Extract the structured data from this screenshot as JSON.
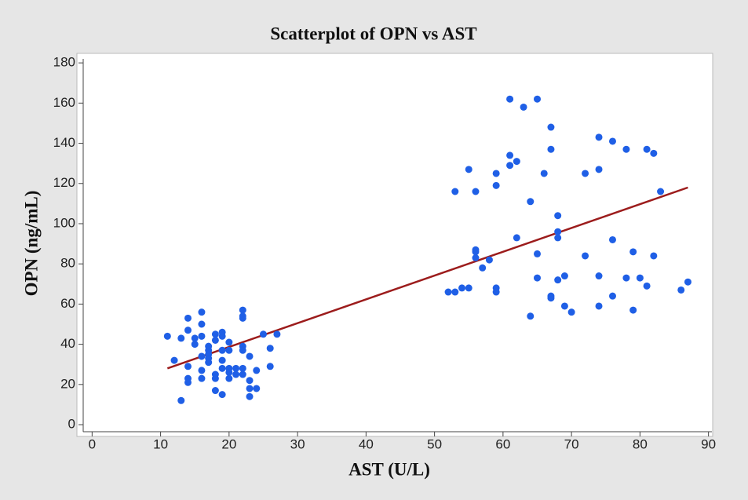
{
  "chart_data": {
    "type": "scatter",
    "title": "Scatterplot of OPN vs AST",
    "x_label": "AST (U/L)",
    "y_label": "OPN (ng/mL)",
    "x": [
      11,
      12,
      13,
      13,
      14,
      14,
      14,
      14,
      14,
      15,
      15,
      16,
      16,
      16,
      16,
      16,
      16,
      17,
      17,
      17,
      17,
      17,
      18,
      18,
      18,
      18,
      18,
      19,
      19,
      19,
      19,
      19,
      19,
      20,
      20,
      20,
      20,
      20,
      21,
      21,
      22,
      22,
      22,
      22,
      22,
      22,
      22,
      23,
      23,
      23,
      23,
      24,
      24,
      25,
      26,
      26,
      27,
      52,
      53,
      53,
      54,
      55,
      55,
      56,
      56,
      56,
      56,
      57,
      58,
      59,
      59,
      59,
      59,
      61,
      61,
      61,
      62,
      62,
      63,
      64,
      64,
      65,
      65,
      65,
      66,
      67,
      67,
      67,
      67,
      68,
      68,
      68,
      68,
      69,
      69,
      70,
      72,
      72,
      74,
      74,
      74,
      74,
      76,
      76,
      76,
      78,
      78,
      79,
      79,
      80,
      81,
      81,
      82,
      82,
      83,
      86,
      87
    ],
    "values": [
      44,
      32,
      12,
      43,
      53,
      47,
      29,
      23,
      21,
      43,
      40,
      56,
      50,
      44,
      34,
      27,
      23,
      39,
      37,
      35,
      33,
      31,
      45,
      42,
      25,
      23,
      17,
      46,
      44,
      37,
      32,
      28,
      15,
      41,
      37,
      28,
      26,
      23,
      28,
      25,
      57,
      54,
      53,
      39,
      37,
      28,
      25,
      34,
      22,
      18,
      14,
      27,
      18,
      45,
      38,
      29,
      45,
      66,
      66,
      116,
      68,
      68,
      127,
      116,
      87,
      86,
      83,
      78,
      82,
      125,
      119,
      68,
      66,
      162,
      134,
      129,
      131,
      93,
      158,
      111,
      54,
      162,
      85,
      73,
      125,
      148,
      137,
      64,
      63,
      104,
      96,
      93,
      72,
      74,
      59,
      56,
      125,
      84,
      143,
      127,
      74,
      59,
      141,
      92,
      64,
      137,
      73,
      86,
      57,
      73,
      137,
      69,
      135,
      84,
      116,
      67,
      71
    ],
    "color": "#1f5fe6",
    "trend_line": {
      "x": [
        11,
        87
      ],
      "values": [
        28,
        118
      ],
      "color": "#9c1c1c"
    },
    "xlim": [
      -1.3,
      90.5
    ],
    "xticks": [
      0,
      10,
      20,
      30,
      40,
      50,
      60,
      70,
      80,
      90
    ],
    "ylim": [
      -3.5,
      182
    ],
    "yticks": [
      0,
      20,
      40,
      60,
      80,
      100,
      120,
      140,
      160,
      180
    ]
  }
}
